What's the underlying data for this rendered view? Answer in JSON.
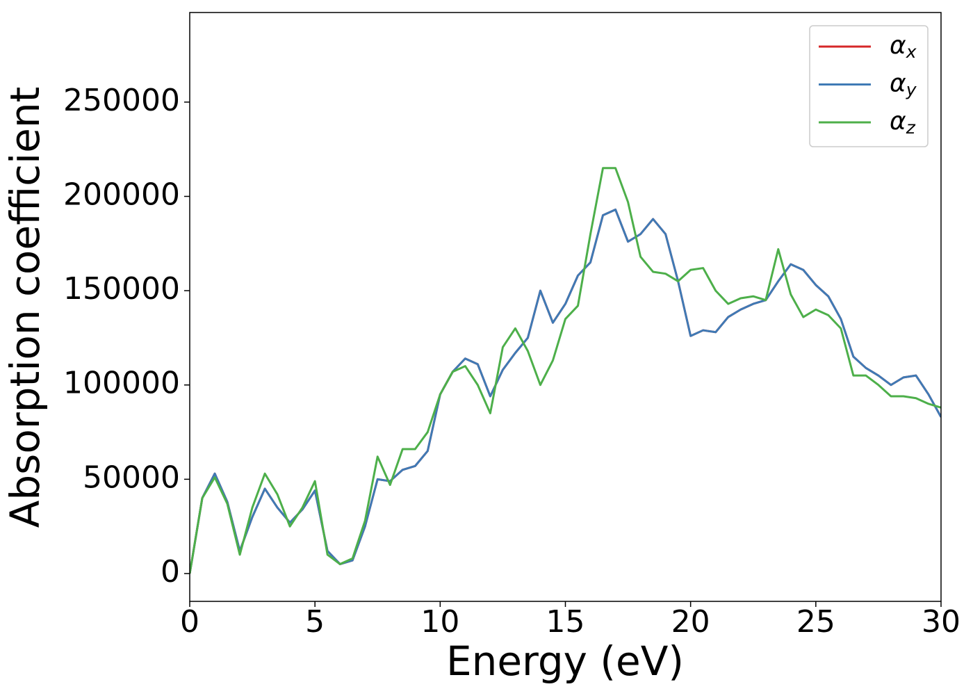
{
  "chart_data": {
    "type": "line",
    "xlabel": "Energy (eV)",
    "ylabel": "Absorption coefficient",
    "x": [
      0,
      0.5,
      1,
      1.5,
      2,
      2.5,
      3,
      3.5,
      4,
      4.5,
      5,
      5.5,
      6,
      6.5,
      7,
      7.5,
      8,
      8.5,
      9,
      9.5,
      10,
      10.5,
      11,
      11.5,
      12,
      12.5,
      13,
      13.5,
      14,
      14.5,
      15,
      15.5,
      16,
      16.5,
      17,
      17.5,
      18,
      18.5,
      19,
      19.5,
      20,
      20.5,
      21,
      21.5,
      22,
      22.5,
      23,
      23.5,
      24,
      24.5,
      25,
      25.5,
      26,
      26.5,
      27,
      27.5,
      28,
      28.5,
      29,
      29.5,
      30
    ],
    "series": [
      {
        "name": "αx",
        "color": "#d62728",
        "values": [
          0,
          40000,
          53000,
          38000,
          12000,
          30000,
          45000,
          35000,
          27000,
          34000,
          44000,
          12000,
          5000,
          7000,
          25000,
          50000,
          49000,
          55000,
          57000,
          65000,
          95000,
          107000,
          114000,
          111000,
          94000,
          108000,
          117000,
          125000,
          150000,
          133000,
          143000,
          158000,
          165000,
          190000,
          193000,
          176000,
          180000,
          188000,
          180000,
          155000,
          126000,
          129000,
          128000,
          136000,
          140000,
          143000,
          145000,
          155000,
          164000,
          161000,
          153000,
          147000,
          135000,
          115000,
          109000,
          105000,
          100000,
          104000,
          105000,
          95000,
          83000
        ]
      },
      {
        "name": "αy",
        "color": "#3f7ab5",
        "values": [
          0,
          40000,
          53000,
          38000,
          12000,
          30000,
          45000,
          35000,
          27000,
          34000,
          44000,
          12000,
          5000,
          7000,
          25000,
          50000,
          49000,
          55000,
          57000,
          65000,
          95000,
          107000,
          114000,
          111000,
          94000,
          108000,
          117000,
          125000,
          150000,
          133000,
          143000,
          158000,
          165000,
          190000,
          193000,
          176000,
          180000,
          188000,
          180000,
          155000,
          126000,
          129000,
          128000,
          136000,
          140000,
          143000,
          145000,
          155000,
          164000,
          161000,
          153000,
          147000,
          135000,
          115000,
          109000,
          105000,
          100000,
          104000,
          105000,
          95000,
          83000
        ]
      },
      {
        "name": "αz",
        "color": "#4daf4a",
        "values": [
          0,
          40000,
          51000,
          37000,
          10000,
          35000,
          53000,
          42000,
          25000,
          35000,
          49000,
          10000,
          5000,
          8000,
          28000,
          62000,
          47000,
          66000,
          66000,
          75000,
          95000,
          107000,
          110000,
          100000,
          85000,
          120000,
          130000,
          118000,
          100000,
          113000,
          135000,
          142000,
          180000,
          215000,
          215000,
          197000,
          168000,
          160000,
          159000,
          155000,
          161000,
          162000,
          150000,
          143000,
          146000,
          147000,
          145000,
          172000,
          148000,
          136000,
          140000,
          137000,
          130000,
          105000,
          105000,
          100000,
          94000,
          94000,
          93000,
          90000,
          88000
        ]
      }
    ],
    "xlim": [
      0,
      30
    ],
    "xticks": [
      0,
      5,
      10,
      15,
      20,
      25,
      30
    ],
    "ylim": [
      -14750,
      297500
    ],
    "yticks": [
      0,
      50000,
      100000,
      150000,
      200000,
      250000
    ],
    "legend": "upper right"
  }
}
